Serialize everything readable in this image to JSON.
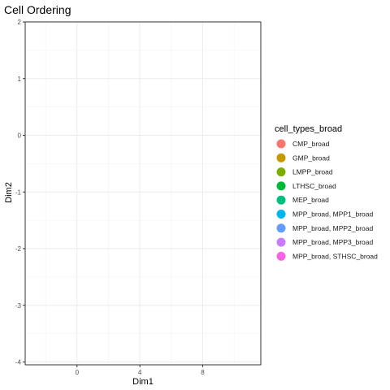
{
  "chart_data": {
    "type": "scatter",
    "title": "Cell Ordering",
    "xlabel": "Dim1",
    "ylabel": "Dim2",
    "xlim": [
      -3.3,
      11.7
    ],
    "ylim": [
      -4.05,
      2.0
    ],
    "xticks": [
      0,
      4,
      8
    ],
    "yticks": [
      2,
      1,
      0,
      -1,
      -2,
      -3,
      -4
    ],
    "grid": true,
    "legend": {
      "title": "cell_types_broad",
      "placement": "right",
      "entries": [
        {
          "label": "CMP_broad",
          "color": "#F8766D"
        },
        {
          "label": "GMP_broad",
          "color": "#C49A00"
        },
        {
          "label": "LMPP_broad",
          "color": "#7CAE00"
        },
        {
          "label": "LTHSC_broad",
          "color": "#00BA38"
        },
        {
          "label": "MEP_broad",
          "color": "#00BF7D"
        },
        {
          "label": "MPP_broad, MPP1_broad",
          "color": "#00B4EF"
        },
        {
          "label": "MPP_broad, MPP2_broad",
          "color": "#619CFF"
        },
        {
          "label": "MPP_broad, MPP3_broad",
          "color": "#C77CFF"
        },
        {
          "label": "MPP_broad, STHSC_broad",
          "color": "#F564E3"
        }
      ]
    },
    "points": []
  }
}
